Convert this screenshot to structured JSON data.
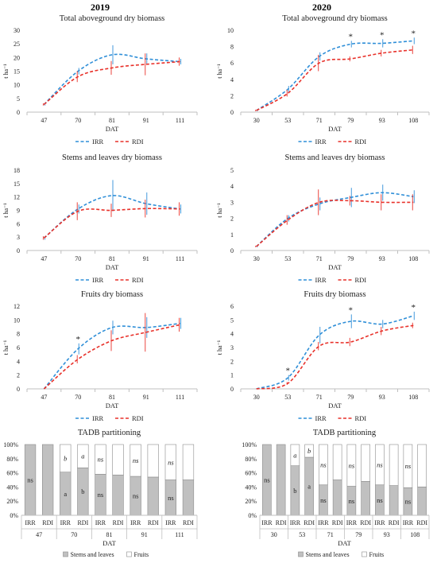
{
  "years": [
    "2019",
    "2020"
  ],
  "legend_line": {
    "irr": "IRR",
    "rdi": "RDI"
  },
  "legend_bar": {
    "stems": "Stems and leaves",
    "fruits": "Fruits"
  },
  "colors": {
    "irr": "#2f8fd8",
    "rdi": "#e8312a",
    "stems_fill": "#c0c0c0",
    "fruits_fill": "#ffffff",
    "axis": "#bfbfbf",
    "text": "#222222"
  },
  "chart_data": [
    {
      "id": "tadb2019",
      "type": "line",
      "title": "Total aboveground dry biomass",
      "xlabel": "DAT",
      "ylabel": "t ha⁻¹",
      "categories": [
        "47",
        "70",
        "81",
        "91",
        "111"
      ],
      "ylim": [
        0,
        30
      ],
      "yticks": [
        0,
        5,
        10,
        15,
        20,
        25,
        30
      ],
      "series": [
        {
          "name": "IRR",
          "values": [
            2.8,
            15,
            21,
            19.5,
            18.5
          ],
          "errors": [
            0.4,
            1.2,
            3.5,
            2,
            1
          ]
        },
        {
          "name": "RDI",
          "values": [
            2.8,
            13,
            16.2,
            17.5,
            18.5
          ],
          "errors": [
            0.4,
            2,
            2.5,
            4,
            1.5
          ]
        }
      ],
      "annotations": []
    },
    {
      "id": "tadb2020",
      "type": "line",
      "title": "Total aboveground dry biomass",
      "xlabel": "DAT",
      "ylabel": "t ha⁻¹",
      "categories": [
        "30",
        "53",
        "71",
        "79",
        "93",
        "108"
      ],
      "ylim": [
        0,
        10
      ],
      "yticks": [
        0,
        2,
        4,
        6,
        8,
        10
      ],
      "series": [
        {
          "name": "IRR",
          "values": [
            0.2,
            2.8,
            6.8,
            8.3,
            8.4,
            8.7
          ],
          "errors": [
            0.1,
            0.4,
            0.5,
            0.4,
            0.5,
            0.4
          ]
        },
        {
          "name": "RDI",
          "values": [
            0.2,
            2.3,
            6.0,
            6.5,
            7.2,
            7.6
          ],
          "errors": [
            0.1,
            0.4,
            1.0,
            0.3,
            0.4,
            0.5
          ]
        }
      ],
      "annotations": [
        {
          "index": 3,
          "text": "*"
        },
        {
          "index": 4,
          "text": "*"
        },
        {
          "index": 5,
          "text": "*"
        }
      ]
    },
    {
      "id": "sl2019",
      "type": "line",
      "title": "Stems and leaves dry biomass",
      "xlabel": "DAT",
      "ylabel": "t ha⁻¹",
      "categories": [
        "47",
        "70",
        "81",
        "91",
        "111"
      ],
      "ylim": [
        0,
        18
      ],
      "yticks": [
        0,
        3,
        6,
        9,
        12,
        15,
        18
      ],
      "series": [
        {
          "name": "IRR",
          "values": [
            2.8,
            9.3,
            12.3,
            10.5,
            9.3
          ],
          "errors": [
            0.4,
            1,
            3.5,
            2.5,
            1
          ]
        },
        {
          "name": "RDI",
          "values": [
            2.8,
            8.8,
            9.0,
            9.4,
            9.3
          ],
          "errors": [
            0.4,
            2,
            1.5,
            2,
            1.5
          ]
        }
      ],
      "annotations": []
    },
    {
      "id": "sl2020",
      "type": "line",
      "title": "Stems and leaves dry biomass",
      "xlabel": "DAT",
      "ylabel": "t ha⁻¹",
      "categories": [
        "30",
        "53",
        "71",
        "79",
        "93",
        "108"
      ],
      "ylim": [
        0,
        5
      ],
      "yticks": [
        0,
        1,
        2,
        3,
        4,
        5
      ],
      "series": [
        {
          "name": "IRR",
          "values": [
            0.25,
            2.0,
            2.9,
            3.3,
            3.6,
            3.35
          ],
          "errors": [
            0.05,
            0.2,
            0.4,
            0.6,
            0.5,
            0.4
          ]
        },
        {
          "name": "RDI",
          "values": [
            0.25,
            1.9,
            3.0,
            3.1,
            3.0,
            3.0
          ],
          "errors": [
            0.05,
            0.3,
            0.8,
            0.3,
            0.5,
            0.5
          ]
        }
      ],
      "annotations": []
    },
    {
      "id": "fr2019",
      "type": "line",
      "title": "Fruits dry biomass",
      "xlabel": "DAT",
      "ylabel": "t ha⁻¹",
      "categories": [
        "47",
        "70",
        "81",
        "91",
        "111"
      ],
      "ylim": [
        0,
        12
      ],
      "yticks": [
        0,
        2,
        4,
        6,
        8,
        10,
        12
      ],
      "series": [
        {
          "name": "IRR",
          "values": [
            0,
            5.8,
            8.9,
            8.9,
            9.5
          ],
          "errors": [
            0,
            0.8,
            1,
            1.5,
            0.8
          ]
        },
        {
          "name": "RDI",
          "values": [
            0,
            4.3,
            7.0,
            8.2,
            9.3
          ],
          "errors": [
            0,
            0.6,
            1.5,
            2.8,
            1
          ]
        }
      ],
      "annotations": [
        {
          "index": 1,
          "text": "*"
        }
      ]
    },
    {
      "id": "fr2020",
      "type": "line",
      "title": "Fruits dry biomass",
      "xlabel": "DAT",
      "ylabel": "t ha⁻¹",
      "categories": [
        "30",
        "53",
        "71",
        "79",
        "93",
        "108"
      ],
      "ylim": [
        0,
        6
      ],
      "yticks": [
        0,
        1,
        2,
        3,
        4,
        5,
        6
      ],
      "series": [
        {
          "name": "IRR",
          "values": [
            0,
            0.8,
            3.9,
            4.9,
            4.7,
            5.3
          ],
          "errors": [
            0,
            0.2,
            0.6,
            0.5,
            0.3,
            0.3
          ]
        },
        {
          "name": "RDI",
          "values": [
            0,
            0.4,
            3.1,
            3.4,
            4.2,
            4.6
          ],
          "errors": [
            0,
            0.1,
            0.3,
            0.3,
            0.3,
            0.2
          ]
        }
      ],
      "annotations": [
        {
          "index": 1,
          "text": "*"
        },
        {
          "index": 3,
          "text": "*"
        },
        {
          "index": 5,
          "text": "*"
        }
      ]
    },
    {
      "id": "part2019",
      "type": "bar",
      "stacked": true,
      "title": "TADB partitioning",
      "xlabel": "DAT",
      "groups": [
        "47",
        "70",
        "81",
        "91",
        "111"
      ],
      "treatments": [
        "IRR",
        "RDI"
      ],
      "yticks": [
        "0%",
        "20%",
        "40%",
        "60%",
        "80%",
        "100%"
      ],
      "series": [
        {
          "name": "Stems and leaves",
          "values": [
            100,
            100,
            61,
            67,
            58,
            57,
            55,
            54,
            50,
            50
          ]
        },
        {
          "name": "Fruits",
          "values": [
            0,
            0,
            39,
            33,
            42,
            43,
            45,
            46,
            50,
            50
          ]
        }
      ],
      "labels_stems": [
        "ns",
        "",
        "a",
        "b",
        "ns",
        "",
        "ns",
        "",
        "ns",
        ""
      ],
      "labels_fruits": [
        "",
        "",
        "b",
        "a",
        "ns",
        "",
        "ns",
        "",
        "ns",
        ""
      ]
    },
    {
      "id": "part2020",
      "type": "bar",
      "stacked": true,
      "title": "TADB partitioning",
      "xlabel": "DAT",
      "groups": [
        "30",
        "53",
        "71",
        "79",
        "93",
        "108"
      ],
      "treatments": [
        "IRR",
        "RDI"
      ],
      "yticks": [
        "0%",
        "20%",
        "40%",
        "60%",
        "80%",
        "100%"
      ],
      "series": [
        {
          "name": "Stems and leaves",
          "values": [
            100,
            100,
            70,
            82,
            43,
            50,
            41,
            48,
            43,
            42,
            39,
            40
          ]
        },
        {
          "name": "Fruits",
          "values": [
            0,
            0,
            30,
            18,
            57,
            50,
            59,
            52,
            57,
            58,
            61,
            60
          ]
        }
      ],
      "labels_stems": [
        "ns",
        "",
        "b",
        "a",
        "ns",
        "",
        "ns",
        "",
        "ns",
        "",
        "ns",
        ""
      ],
      "labels_fruits": [
        "",
        "",
        "a",
        "b",
        "ns",
        "",
        "ns",
        "",
        "ns",
        "",
        "ns",
        ""
      ]
    }
  ]
}
